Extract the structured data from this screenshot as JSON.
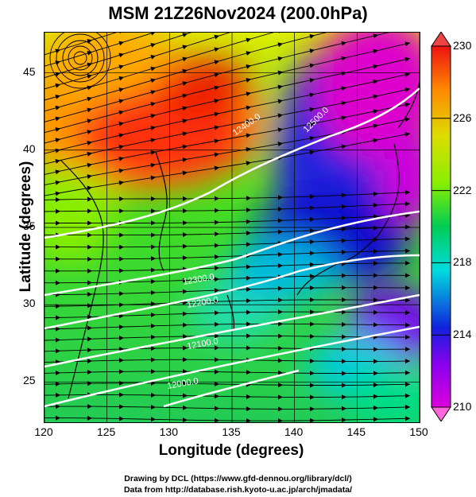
{
  "title": "MSM 21Z26Nov2024 (200.0hPa)",
  "x_axis": {
    "label": "Longitude (degrees)",
    "ticks": [
      "120",
      "125",
      "130",
      "135",
      "140",
      "145",
      "150"
    ],
    "range": [
      120,
      150
    ]
  },
  "y_axis": {
    "label": "Latitude (degrees)",
    "ticks": [
      "25",
      "30",
      "35",
      "40",
      "45"
    ],
    "range": [
      22.4,
      47.6
    ]
  },
  "colorbar": {
    "labels": [
      "230",
      "226",
      "222",
      "218",
      "214",
      "210"
    ],
    "values": [
      230,
      226,
      222,
      218,
      214,
      210
    ],
    "range": [
      210,
      230
    ],
    "extend": "both",
    "colors": [
      "#dd00dd",
      "#0000cc",
      "#00dddd",
      "#00cc55",
      "#88ee00",
      "#dddd00",
      "#ff8800",
      "#ee1111"
    ]
  },
  "contours": {
    "color": "#ffffff",
    "labels": [
      "12000.0",
      "12100.0",
      "12200.0",
      "12300.0",
      "12400.0",
      "12500.0"
    ]
  },
  "credits": {
    "line1": "Drawing by DCL (https://www.gfd-dennou.org/library/dcl/)",
    "line2": "Data from http://database.rish.kyoto-u.ac.jp/arch/jmadata/"
  }
}
